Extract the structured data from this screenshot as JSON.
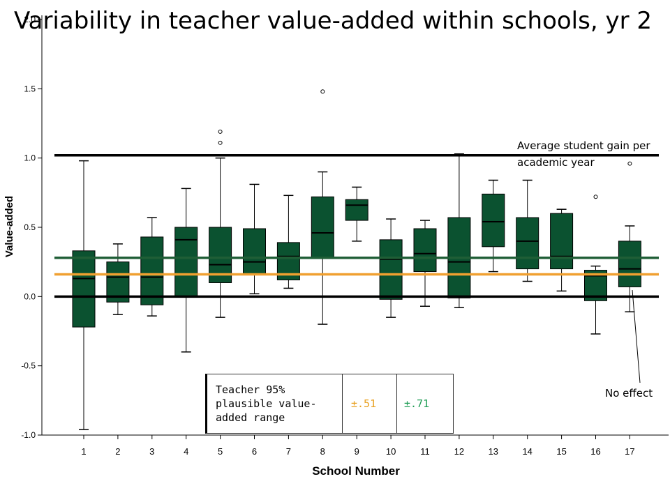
{
  "title": "Variability in teacher value-added within schools, yr 2",
  "colors": {
    "box_fill": "#0b5230",
    "green_line": "#1f5e36",
    "orange_line": "#f0a030",
    "reference_line": "#000000",
    "table_orange": "#e8a020",
    "table_green": "#1f9d55"
  },
  "annotations": {
    "gain_line": "Average student gain per academic year",
    "no_effect": "No effect"
  },
  "range_table": {
    "label": "Teacher 95% plausible value-added range",
    "orange_value": "±.51",
    "green_value": "±.71"
  },
  "chart_data": {
    "type": "boxplot",
    "xlabel": "School Number",
    "ylabel": "Value-added",
    "ylim": [
      -1.0,
      2.0
    ],
    "yticks": [
      "-1.0",
      "-0.5",
      "0.0",
      "0.5",
      "1.0",
      "1.5",
      "2.0"
    ],
    "ytick_values": [
      -1.0,
      -0.5,
      0.0,
      0.5,
      1.0,
      1.5,
      2.0
    ],
    "categories": [
      "1",
      "2",
      "3",
      "4",
      "5",
      "6",
      "7",
      "8",
      "9",
      "10",
      "11",
      "12",
      "13",
      "14",
      "15",
      "16",
      "17"
    ],
    "boxes": [
      {
        "school": "1",
        "min": -0.96,
        "q1": -0.22,
        "median": 0.13,
        "q3": 0.33,
        "max": 0.98,
        "outliers": []
      },
      {
        "school": "2",
        "min": -0.13,
        "q1": -0.04,
        "median": 0.14,
        "q3": 0.25,
        "max": 0.38,
        "outliers": []
      },
      {
        "school": "3",
        "min": -0.14,
        "q1": -0.06,
        "median": 0.14,
        "q3": 0.43,
        "max": 0.57,
        "outliers": []
      },
      {
        "school": "4",
        "min": -0.4,
        "q1": 0.0,
        "median": 0.41,
        "q3": 0.5,
        "max": 0.78,
        "outliers": []
      },
      {
        "school": "5",
        "min": -0.15,
        "q1": 0.1,
        "median": 0.23,
        "q3": 0.5,
        "max": 1.0,
        "outliers": [
          1.11,
          1.19
        ]
      },
      {
        "school": "6",
        "min": 0.02,
        "q1": 0.16,
        "median": 0.25,
        "q3": 0.49,
        "max": 0.81,
        "outliers": []
      },
      {
        "school": "7",
        "min": 0.06,
        "q1": 0.12,
        "median": 0.29,
        "q3": 0.39,
        "max": 0.73,
        "outliers": []
      },
      {
        "school": "8",
        "min": -0.2,
        "q1": 0.28,
        "median": 0.46,
        "q3": 0.72,
        "max": 0.9,
        "outliers": [
          1.48
        ]
      },
      {
        "school": "9",
        "min": 0.4,
        "q1": 0.55,
        "median": 0.66,
        "q3": 0.7,
        "max": 0.79,
        "outliers": []
      },
      {
        "school": "10",
        "min": -0.15,
        "q1": -0.02,
        "median": 0.27,
        "q3": 0.41,
        "max": 0.56,
        "outliers": []
      },
      {
        "school": "11",
        "min": -0.07,
        "q1": 0.18,
        "median": 0.31,
        "q3": 0.49,
        "max": 0.55,
        "outliers": []
      },
      {
        "school": "12",
        "min": -0.08,
        "q1": -0.01,
        "median": 0.25,
        "q3": 0.57,
        "max": 1.03,
        "outliers": []
      },
      {
        "school": "13",
        "min": 0.18,
        "q1": 0.36,
        "median": 0.54,
        "q3": 0.74,
        "max": 0.84,
        "outliers": []
      },
      {
        "school": "14",
        "min": 0.11,
        "q1": 0.2,
        "median": 0.4,
        "q3": 0.57,
        "max": 0.84,
        "outliers": []
      },
      {
        "school": "15",
        "min": 0.04,
        "q1": 0.2,
        "median": 0.29,
        "q3": 0.6,
        "max": 0.63,
        "outliers": []
      },
      {
        "school": "16",
        "min": -0.27,
        "q1": -0.03,
        "median": 0.15,
        "q3": 0.19,
        "max": 0.22,
        "outliers": [
          0.72
        ]
      },
      {
        "school": "17",
        "min": -0.11,
        "q1": 0.07,
        "median": 0.2,
        "q3": 0.4,
        "max": 0.51,
        "outliers": [
          0.96
        ]
      }
    ],
    "reference_lines": [
      {
        "value": 1.02,
        "color": "#000000"
      },
      {
        "value": 0.28,
        "color": "#1f5e36"
      },
      {
        "value": 0.16,
        "color": "#f0a030"
      },
      {
        "value": 0.0,
        "color": "#000000"
      }
    ]
  }
}
